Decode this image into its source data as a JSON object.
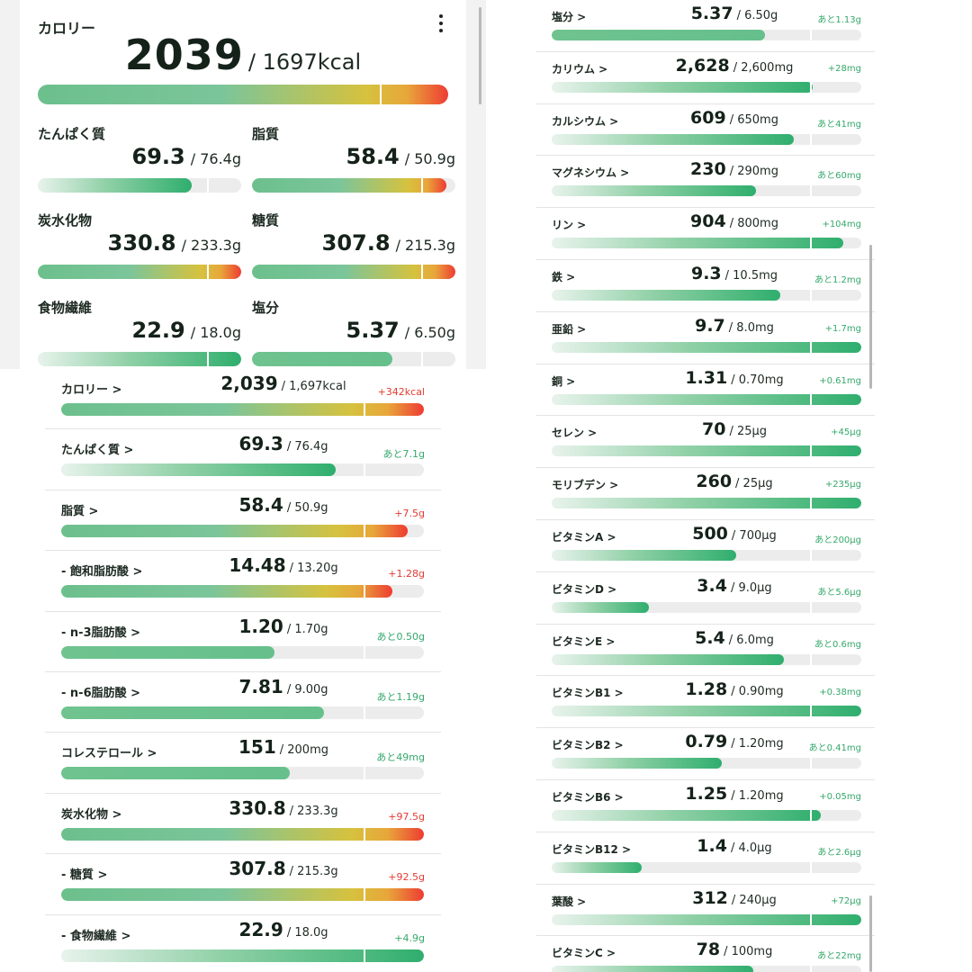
{
  "summary": {
    "calorie_label": "カロリー",
    "calorie_value": "2039",
    "calorie_target": "/ 1697kcal",
    "calorie_ratio": 1.2,
    "nutrients": [
      {
        "label": "たんぱく質",
        "value": "69.3",
        "target": "/ 76.4g",
        "ratio": 0.907,
        "style": "under"
      },
      {
        "label": "脂質",
        "value": "58.4",
        "target": "/ 50.9g",
        "ratio": 1.147,
        "style": "over"
      },
      {
        "label": "炭水化物",
        "value": "330.8",
        "target": "/ 233.3g",
        "ratio": 1.418,
        "style": "over"
      },
      {
        "label": "糖質",
        "value": "307.8",
        "target": "/ 215.3g",
        "ratio": 1.43,
        "style": "over"
      },
      {
        "label": "食物繊維",
        "value": "22.9",
        "target": "/ 18.0g",
        "ratio": 1.27,
        "style": "good"
      },
      {
        "label": "塩分",
        "value": "5.37",
        "target": "/ 6.50g",
        "ratio": 0.826,
        "style": "ok"
      }
    ]
  },
  "left_list": [
    {
      "name": "カロリー >",
      "value": "2,039",
      "target": "/ 1,697kcal",
      "diff": "+342kcal",
      "diff_type": "over",
      "ratio": 1.2,
      "style": "over"
    },
    {
      "name": "たんぱく質 >",
      "value": "69.3",
      "target": "/ 76.4g",
      "diff": "あと7.1g",
      "diff_type": "green",
      "ratio": 0.907,
      "style": "under"
    },
    {
      "name": "脂質 >",
      "value": "58.4",
      "target": "/ 50.9g",
      "diff": "+7.5g",
      "diff_type": "over",
      "ratio": 1.147,
      "style": "over"
    },
    {
      "name": "- 飽和脂肪酸 >",
      "value": "14.48",
      "target": "/ 13.20g",
      "diff": "+1.28g",
      "diff_type": "over",
      "ratio": 1.097,
      "style": "over"
    },
    {
      "name": "- n-3脂肪酸 >",
      "value": "1.20",
      "target": "/ 1.70g",
      "diff": "あと0.50g",
      "diff_type": "green",
      "ratio": 0.706,
      "style": "ok"
    },
    {
      "name": "- n-6脂肪酸 >",
      "value": "7.81",
      "target": "/ 9.00g",
      "diff": "あと1.19g",
      "diff_type": "green",
      "ratio": 0.868,
      "style": "ok"
    },
    {
      "name": "コレステロール >",
      "value": "151",
      "target": "/ 200mg",
      "diff": "あと49mg",
      "diff_type": "green",
      "ratio": 0.755,
      "style": "ok"
    },
    {
      "name": "炭水化物 >",
      "value": "330.8",
      "target": "/ 233.3g",
      "diff": "+97.5g",
      "diff_type": "over",
      "ratio": 1.418,
      "style": "over"
    },
    {
      "name": "- 糖質 >",
      "value": "307.8",
      "target": "/ 215.3g",
      "diff": "+92.5g",
      "diff_type": "over",
      "ratio": 1.43,
      "style": "over"
    },
    {
      "name": "- 食物繊維 >",
      "value": "22.9",
      "target": "/ 18.0g",
      "diff": "+4.9g",
      "diff_type": "green",
      "ratio": 1.27,
      "style": "good"
    }
  ],
  "right_list": [
    {
      "name": "塩分 >",
      "value": "5.37",
      "target": "/ 6.50g",
      "diff": "あと1.13g",
      "diff_type": "green",
      "ratio": 0.826,
      "style": "ok"
    },
    {
      "name": "カリウム >",
      "value": "2,628",
      "target": "/ 2,600mg",
      "diff": "+28mg",
      "diff_type": "green",
      "ratio": 1.011,
      "style": "good"
    },
    {
      "name": "カルシウム >",
      "value": "609",
      "target": "/ 650mg",
      "diff": "あと41mg",
      "diff_type": "green",
      "ratio": 0.937,
      "style": "under"
    },
    {
      "name": "マグネシウム >",
      "value": "230",
      "target": "/ 290mg",
      "diff": "あと60mg",
      "diff_type": "green",
      "ratio": 0.793,
      "style": "under"
    },
    {
      "name": "リン >",
      "value": "904",
      "target": "/ 800mg",
      "diff": "+104mg",
      "diff_type": "green",
      "ratio": 1.13,
      "style": "good"
    },
    {
      "name": "鉄 >",
      "value": "9.3",
      "target": "/ 10.5mg",
      "diff": "あと1.2mg",
      "diff_type": "green",
      "ratio": 0.886,
      "style": "under"
    },
    {
      "name": "亜鉛 >",
      "value": "9.7",
      "target": "/ 8.0mg",
      "diff": "+1.7mg",
      "diff_type": "green",
      "ratio": 1.213,
      "style": "good"
    },
    {
      "name": "銅 >",
      "value": "1.31",
      "target": "/ 0.70mg",
      "diff": "+0.61mg",
      "diff_type": "green",
      "ratio": 1.871,
      "style": "good"
    },
    {
      "name": "セレン >",
      "value": "70",
      "target": "/ 25µg",
      "diff": "+45µg",
      "diff_type": "green",
      "ratio": 2.8,
      "style": "good"
    },
    {
      "name": "モリブデン >",
      "value": "260",
      "target": "/ 25µg",
      "diff": "+235µg",
      "diff_type": "green",
      "ratio": 10.4,
      "style": "good"
    },
    {
      "name": "ビタミンA >",
      "value": "500",
      "target": "/ 700µg",
      "diff": "あと200µg",
      "diff_type": "green",
      "ratio": 0.714,
      "style": "under"
    },
    {
      "name": "ビタミンD >",
      "value": "3.4",
      "target": "/ 9.0µg",
      "diff": "あと5.6µg",
      "diff_type": "green",
      "ratio": 0.378,
      "style": "under"
    },
    {
      "name": "ビタミンE >",
      "value": "5.4",
      "target": "/ 6.0mg",
      "diff": "あと0.6mg",
      "diff_type": "green",
      "ratio": 0.9,
      "style": "under"
    },
    {
      "name": "ビタミンB1 >",
      "value": "1.28",
      "target": "/ 0.90mg",
      "diff": "+0.38mg",
      "diff_type": "green",
      "ratio": 1.422,
      "style": "good"
    },
    {
      "name": "ビタミンB2 >",
      "value": "0.79",
      "target": "/ 1.20mg",
      "diff": "あと0.41mg",
      "diff_type": "green",
      "ratio": 0.658,
      "style": "under"
    },
    {
      "name": "ビタミンB6 >",
      "value": "1.25",
      "target": "/ 1.20mg",
      "diff": "+0.05mg",
      "diff_type": "green",
      "ratio": 1.042,
      "style": "good"
    },
    {
      "name": "ビタミンB12 >",
      "value": "1.4",
      "target": "/ 4.0µg",
      "diff": "あと2.6µg",
      "diff_type": "green",
      "ratio": 0.35,
      "style": "under"
    },
    {
      "name": "葉酸 >",
      "value": "312",
      "target": "/ 240µg",
      "diff": "+72µg",
      "diff_type": "green",
      "ratio": 1.3,
      "style": "good"
    },
    {
      "name": "ビタミンC >",
      "value": "78",
      "target": "/ 100mg",
      "diff": "あと22mg",
      "diff_type": "green",
      "ratio": 0.78,
      "style": "under"
    }
  ],
  "colors": {
    "over_gradient_start": "#6cc08c",
    "over_gradient_end": "#ee3c32",
    "good_green": "#2fae6e",
    "ok_green": "#6fc38f",
    "over_text": "#e23b32",
    "under_text": "#35a86a",
    "track": "#ececec"
  },
  "icons": {
    "menu": "kebab-menu-icon"
  }
}
